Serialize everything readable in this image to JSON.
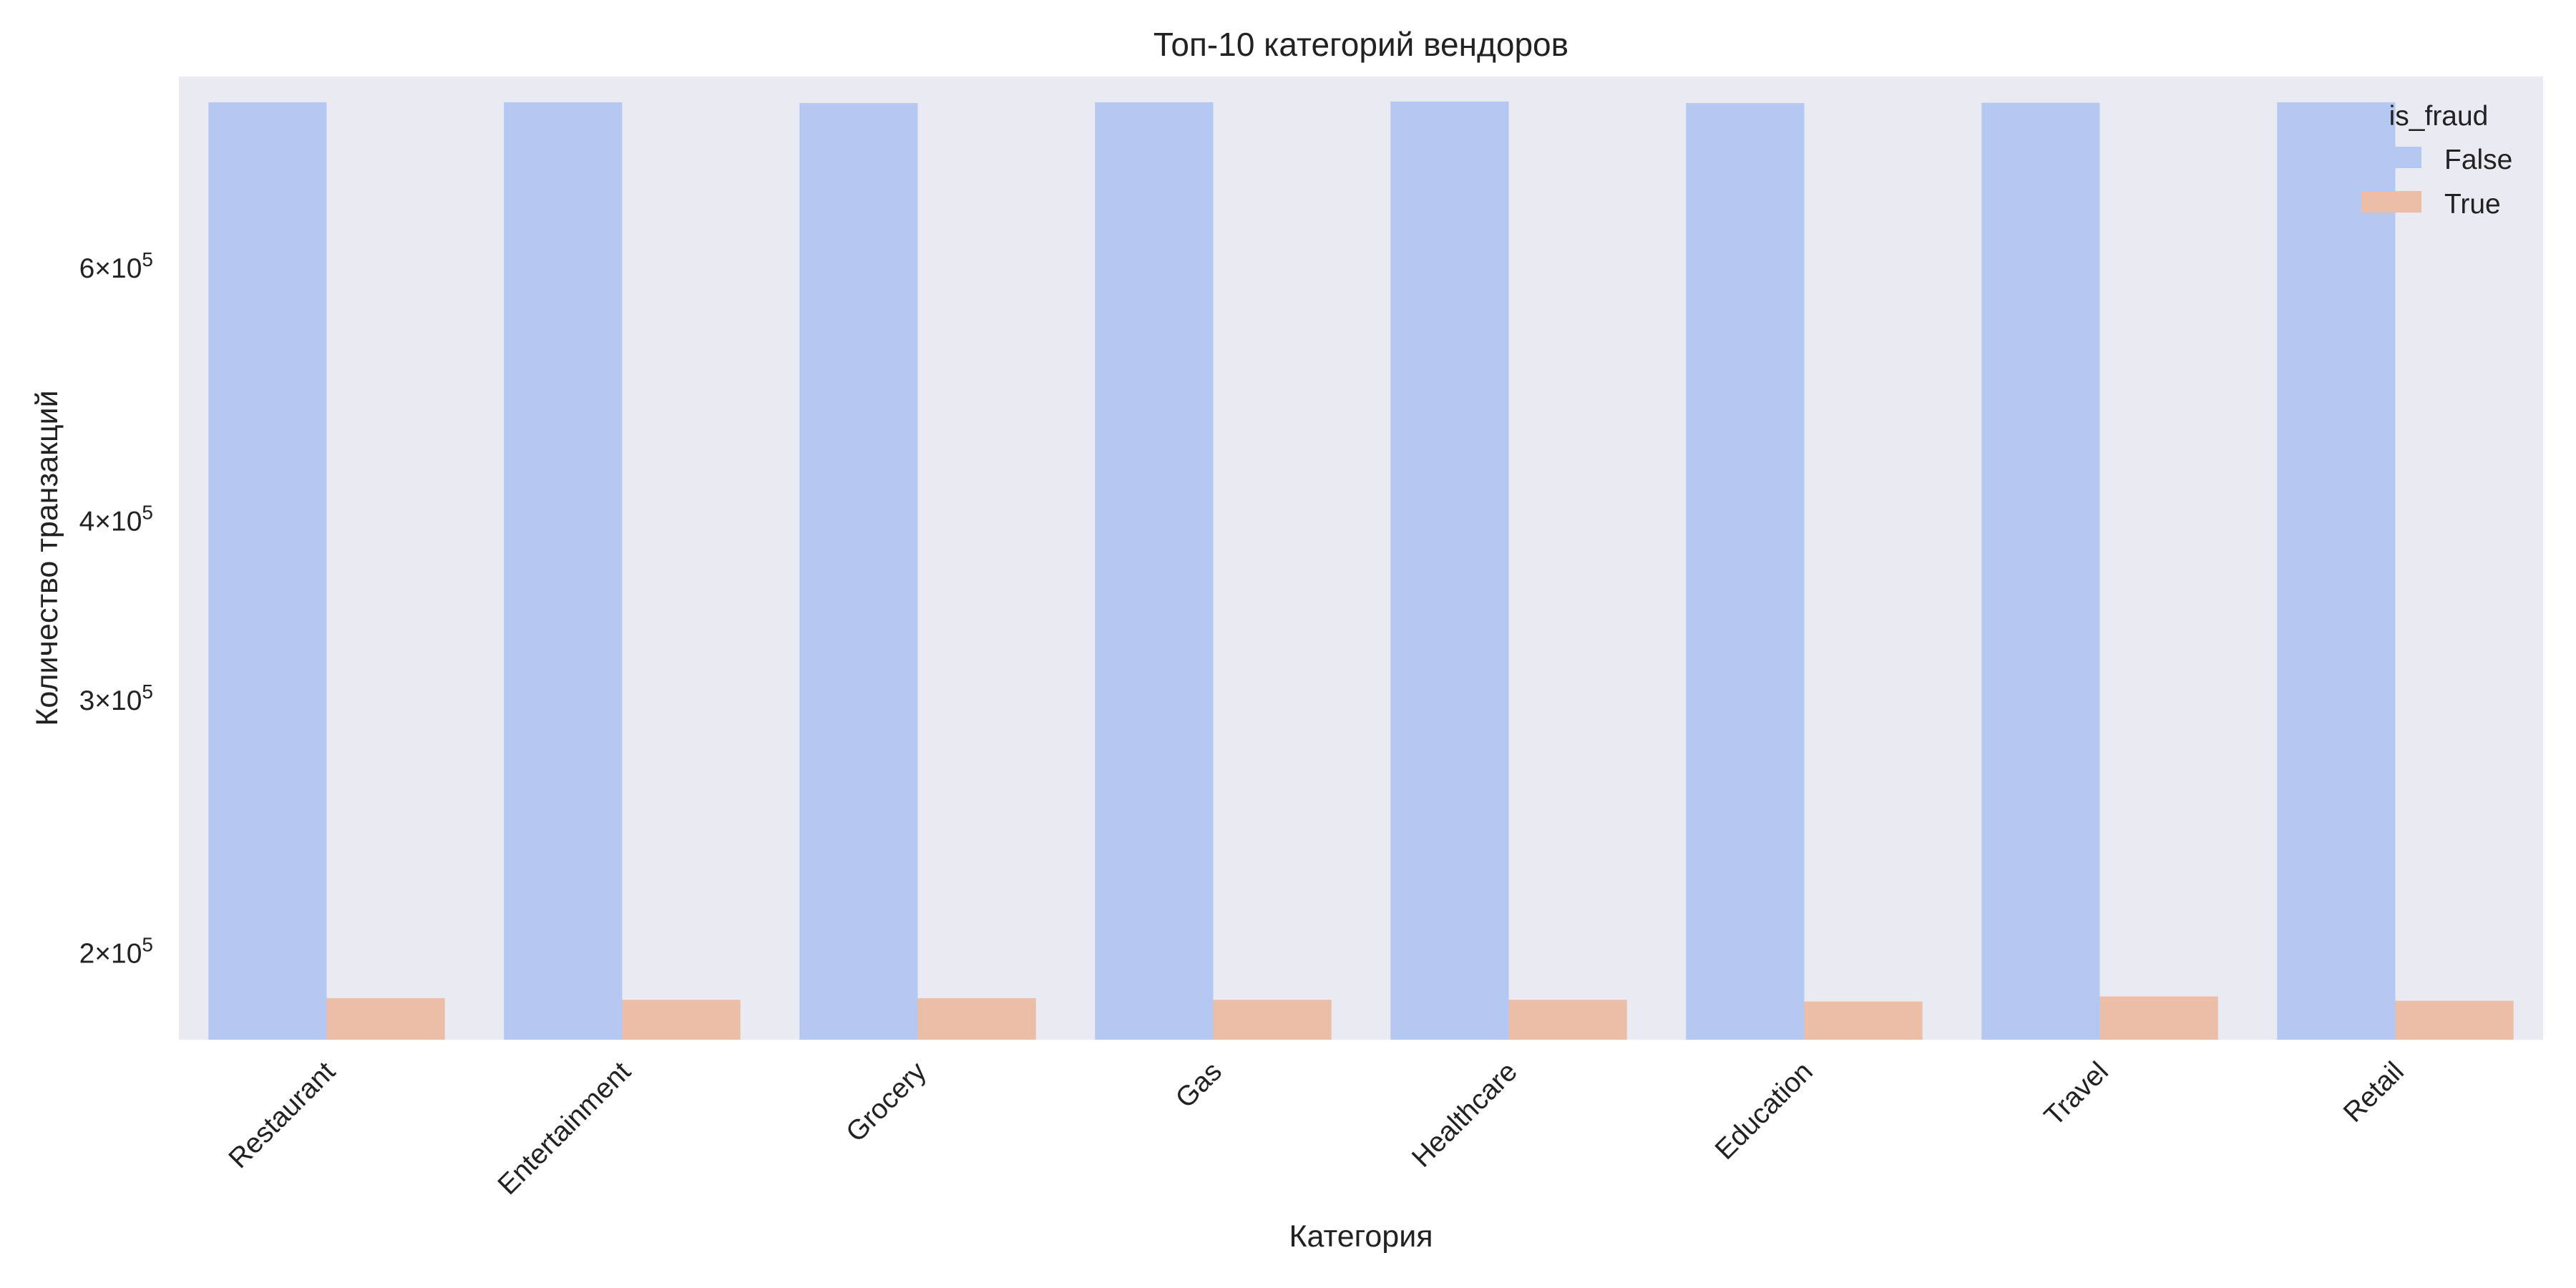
{
  "chart_data": {
    "type": "bar",
    "title": "Топ-10 категорий вендоров",
    "xlabel": "Категория",
    "ylabel": "Количество транзакций",
    "y_scale": "log",
    "ylim": [
      174000,
      815000
    ],
    "grid": false,
    "legend_position": "top-right",
    "legend_title": "is_fraud",
    "categories": [
      "Restaurant",
      "Entertainment",
      "Grocery",
      "Gas",
      "Healthcare",
      "Education",
      "Travel",
      "Retail"
    ],
    "series": [
      {
        "name": "False",
        "color": "#b4c8f1",
        "values": [
          782000,
          782000,
          781000,
          782000,
          783000,
          781000,
          781500,
          782000
        ]
      },
      {
        "name": "True",
        "color": "#ecbea8",
        "values": [
          186000,
          185500,
          186000,
          185500,
          185500,
          185000,
          186500,
          185200
        ]
      }
    ],
    "y_ticks": [
      {
        "value": 200000,
        "mantissa": "2",
        "base": "10",
        "exponent": "5"
      },
      {
        "value": 300000,
        "mantissa": "3",
        "base": "10",
        "exponent": "5"
      },
      {
        "value": 400000,
        "mantissa": "4",
        "base": "10",
        "exponent": "5"
      },
      {
        "value": 600000,
        "mantissa": "6",
        "base": "10",
        "exponent": "5"
      }
    ],
    "colors": {
      "plot_background": "#eaeaf2"
    }
  }
}
